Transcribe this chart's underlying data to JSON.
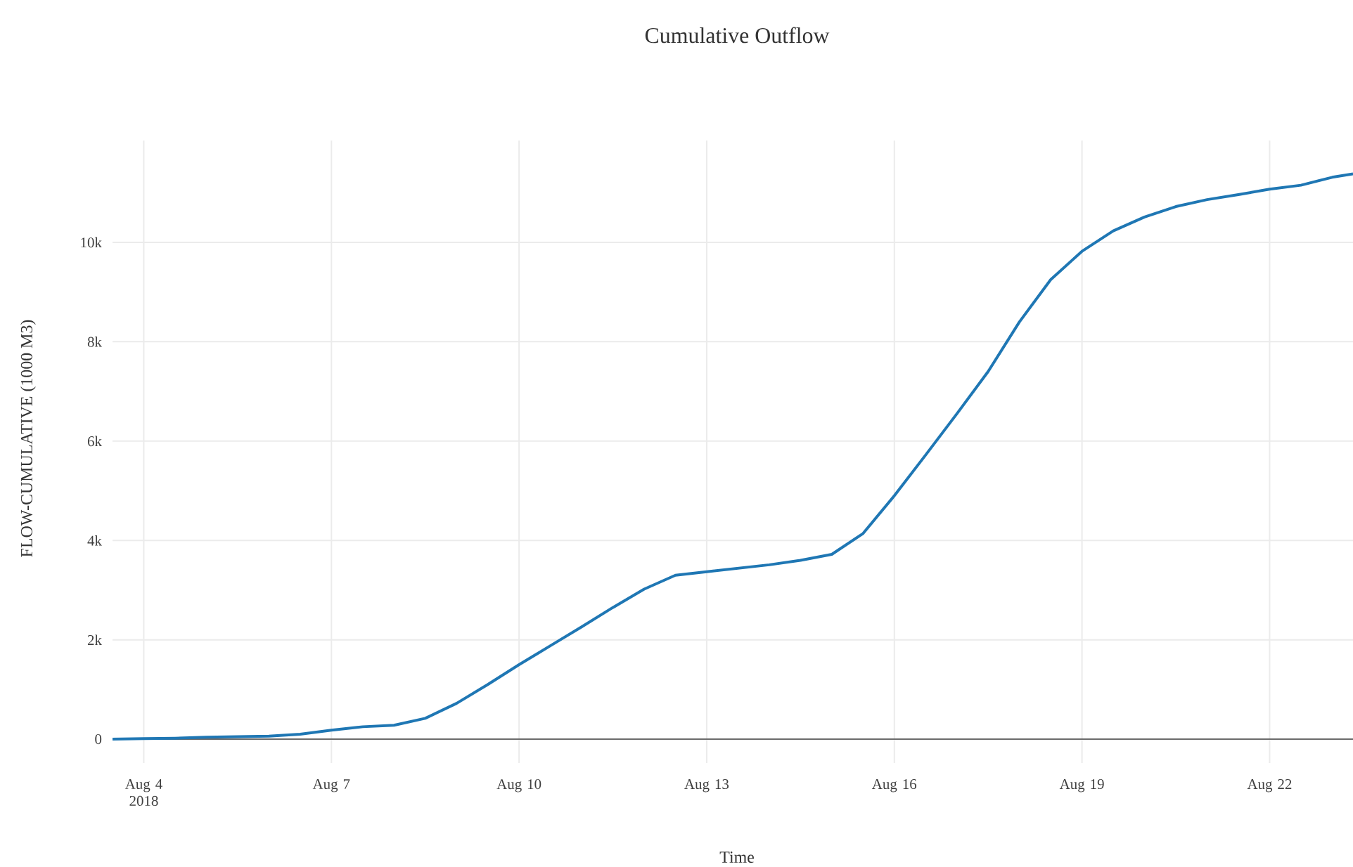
{
  "chart_data": {
    "type": "line",
    "title": "Cumulative Outflow",
    "xlabel": "Time",
    "ylabel": "FLOW-CUMULATIVE (1000 M3)",
    "x": [
      "2018-08-03T12:00",
      "2018-08-04",
      "2018-08-04T12:00",
      "2018-08-05",
      "2018-08-05T12:00",
      "2018-08-06",
      "2018-08-06T12:00",
      "2018-08-07",
      "2018-08-07T12:00",
      "2018-08-08",
      "2018-08-08T12:00",
      "2018-08-09",
      "2018-08-09T12:00",
      "2018-08-10",
      "2018-08-10T12:00",
      "2018-08-11",
      "2018-08-11T12:00",
      "2018-08-12",
      "2018-08-12T12:00",
      "2018-08-13",
      "2018-08-13T12:00",
      "2018-08-14",
      "2018-08-14T12:00",
      "2018-08-15",
      "2018-08-15T12:00",
      "2018-08-16",
      "2018-08-16T12:00",
      "2018-08-17",
      "2018-08-17T12:00",
      "2018-08-18",
      "2018-08-18T12:00",
      "2018-08-19",
      "2018-08-19T12:00",
      "2018-08-20",
      "2018-08-20T12:00",
      "2018-08-21",
      "2018-08-21T12:00",
      "2018-08-22",
      "2018-08-22T12:00",
      "2018-08-23",
      "2018-08-23T08:00"
    ],
    "series": [
      {
        "color": "#1f77b4",
        "values": [
          0,
          10,
          20,
          40,
          50,
          60,
          100,
          180,
          250,
          280,
          420,
          720,
          1100,
          1500,
          1880,
          2260,
          2650,
          3020,
          3300,
          3370,
          3440,
          3510,
          3600,
          3720,
          4140,
          4900,
          5720,
          6550,
          7400,
          8400,
          9250,
          9820,
          10230,
          10510,
          10720,
          10860,
          10960,
          11070,
          11150,
          11310,
          11380
        ]
      }
    ],
    "xlim": [
      "2018-08-03T12:00",
      "2018-08-23T08:00"
    ],
    "xticks": [
      {
        "value": "2018-08-04",
        "label": "Aug 4 2018"
      },
      {
        "value": "2018-08-07",
        "label": "Aug 7"
      },
      {
        "value": "2018-08-10",
        "label": "Aug 10"
      },
      {
        "value": "2018-08-13",
        "label": "Aug 13"
      },
      {
        "value": "2018-08-16",
        "label": "Aug 16"
      },
      {
        "value": "2018-08-19",
        "label": "Aug 19"
      },
      {
        "value": "2018-08-22",
        "label": "Aug 22"
      }
    ],
    "ylim": [
      -480,
      12050
    ],
    "yticks": [
      0,
      {
        "value": 2000,
        "label": "2k"
      },
      {
        "value": 4000,
        "label": "4k"
      },
      {
        "value": 6000,
        "label": "6k"
      },
      {
        "value": 8000,
        "label": "8k"
      },
      {
        "value": 10000,
        "label": "10k"
      }
    ],
    "grid": true,
    "marker": "none",
    "line_style": "solid"
  }
}
